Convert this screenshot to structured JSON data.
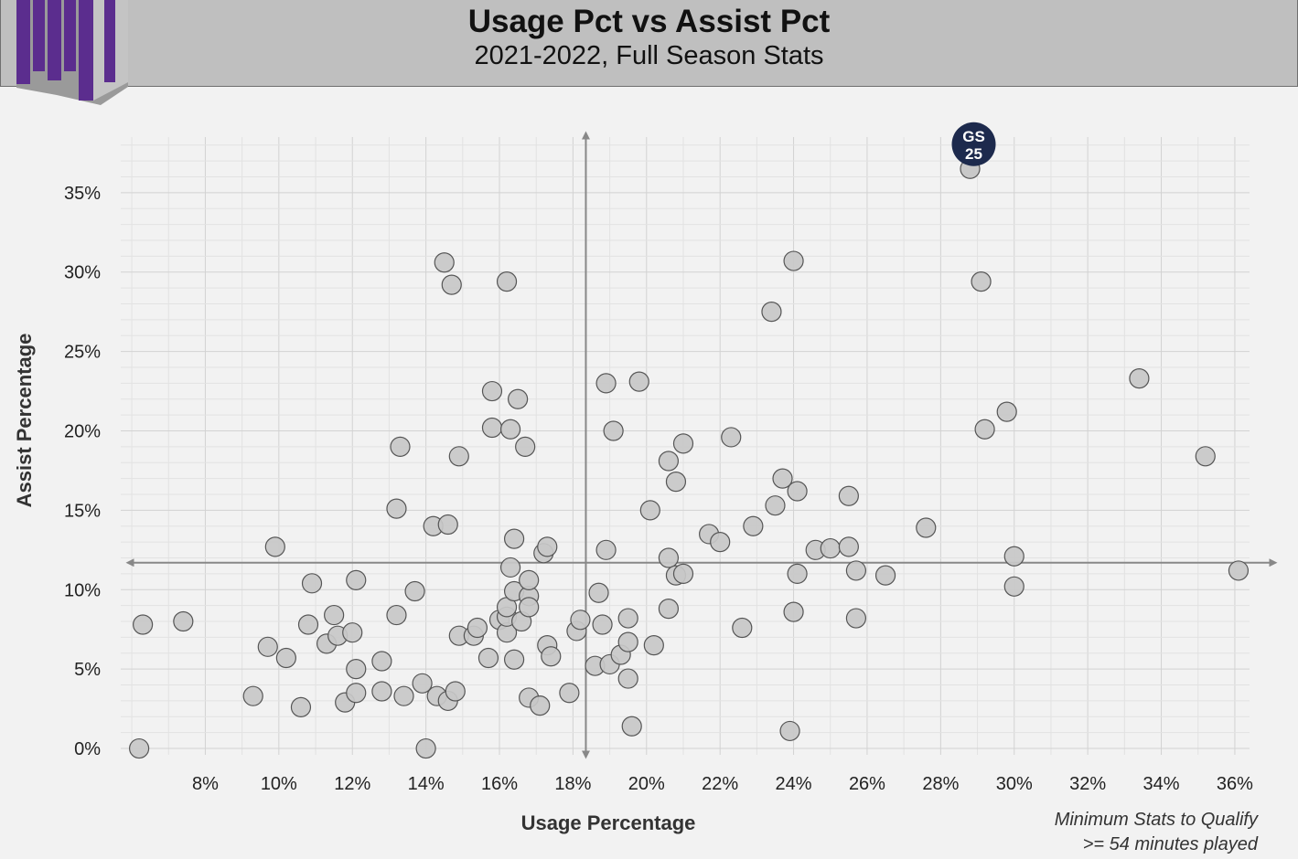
{
  "header": {
    "title": "Usage Pct vs Assist Pct",
    "subtitle": "2021-2022, Full Season Stats"
  },
  "footnote": {
    "line1": "Minimum Stats to Qualify",
    "line2": ">= 54 minutes played"
  },
  "colors": {
    "point_fill": "#c8c8c8",
    "point_stroke": "#555555",
    "highlight_fill": "#1d2a4d",
    "header_bg": "#bfbfbf",
    "plot_bg": "#f2f2f2",
    "logo_purple": "#5b2d8e"
  },
  "chart_data": {
    "type": "scatter",
    "xlabel": "Usage Percentage",
    "ylabel": "Assist Percentage",
    "xlim": [
      5.7,
      36.4
    ],
    "ylim": [
      -0.4,
      38.5
    ],
    "x_ticks": [
      8,
      10,
      12,
      14,
      16,
      18,
      20,
      22,
      24,
      26,
      28,
      30,
      32,
      34,
      36
    ],
    "y_ticks": [
      0,
      5,
      10,
      15,
      20,
      25,
      30,
      35
    ],
    "tick_suffix": "%",
    "grid": true,
    "reference_lines": {
      "x": 18.35,
      "y": 11.7
    },
    "highlight": {
      "label_top": "GS",
      "label_bottom": "25",
      "x": 28.8,
      "y": 36.5
    },
    "points": [
      [
        6.2,
        0
      ],
      [
        6.3,
        7.8
      ],
      [
        7.4,
        8
      ],
      [
        9.3,
        3.3
      ],
      [
        9.7,
        6.4
      ],
      [
        9.9,
        12.7
      ],
      [
        10.2,
        5.7
      ],
      [
        10.6,
        2.6
      ],
      [
        10.8,
        7.8
      ],
      [
        10.9,
        10.4
      ],
      [
        11.3,
        6.6
      ],
      [
        11.5,
        8.4
      ],
      [
        11.6,
        7.1
      ],
      [
        11.8,
        2.9
      ],
      [
        12.0,
        7.3
      ],
      [
        12.1,
        3.5
      ],
      [
        12.1,
        5.0
      ],
      [
        12.1,
        10.6
      ],
      [
        12.8,
        3.6
      ],
      [
        12.8,
        5.5
      ],
      [
        13.2,
        8.4
      ],
      [
        13.2,
        15.1
      ],
      [
        13.3,
        19.0
      ],
      [
        13.4,
        3.3
      ],
      [
        13.7,
        9.9
      ],
      [
        13.9,
        4.1
      ],
      [
        14.0,
        0
      ],
      [
        14.2,
        14.0
      ],
      [
        14.3,
        3.3
      ],
      [
        14.5,
        30.6
      ],
      [
        14.6,
        3.0
      ],
      [
        14.6,
        14.1
      ],
      [
        14.7,
        29.2
      ],
      [
        14.8,
        3.6
      ],
      [
        14.9,
        7.1
      ],
      [
        14.9,
        18.4
      ],
      [
        15.3,
        7.1
      ],
      [
        15.4,
        7.6
      ],
      [
        15.7,
        5.7
      ],
      [
        15.8,
        20.2
      ],
      [
        15.8,
        22.5
      ],
      [
        16.0,
        8.1
      ],
      [
        16.2,
        29.4
      ],
      [
        16.2,
        7.3
      ],
      [
        16.2,
        8.3
      ],
      [
        16.2,
        8.9
      ],
      [
        16.3,
        20.1
      ],
      [
        16.3,
        11.4
      ],
      [
        16.4,
        13.2
      ],
      [
        16.4,
        9.9
      ],
      [
        16.4,
        5.6
      ],
      [
        16.5,
        22.0
      ],
      [
        16.6,
        8.0
      ],
      [
        16.7,
        19.0
      ],
      [
        16.8,
        9.6
      ],
      [
        16.8,
        10.6
      ],
      [
        16.8,
        8.9
      ],
      [
        16.8,
        3.2
      ],
      [
        17.1,
        2.7
      ],
      [
        17.2,
        12.3
      ],
      [
        17.3,
        12.7
      ],
      [
        17.3,
        6.5
      ],
      [
        17.4,
        5.8
      ],
      [
        17.9,
        3.5
      ],
      [
        18.1,
        7.4
      ],
      [
        18.2,
        8.1
      ],
      [
        18.6,
        5.2
      ],
      [
        18.7,
        9.8
      ],
      [
        18.8,
        7.8
      ],
      [
        18.9,
        23.0
      ],
      [
        18.9,
        12.5
      ],
      [
        19.0,
        5.3
      ],
      [
        19.1,
        20.0
      ],
      [
        19.3,
        5.9
      ],
      [
        19.5,
        4.4
      ],
      [
        19.5,
        6.7
      ],
      [
        19.5,
        8.2
      ],
      [
        19.6,
        1.4
      ],
      [
        19.8,
        23.1
      ],
      [
        20.1,
        15.0
      ],
      [
        20.2,
        6.5
      ],
      [
        20.6,
        18.1
      ],
      [
        20.6,
        12.0
      ],
      [
        20.6,
        8.8
      ],
      [
        20.8,
        16.8
      ],
      [
        20.8,
        10.9
      ],
      [
        21.0,
        11.0
      ],
      [
        21.0,
        19.2
      ],
      [
        21.7,
        13.5
      ],
      [
        22.0,
        13.0
      ],
      [
        22.3,
        19.6
      ],
      [
        22.6,
        7.6
      ],
      [
        22.9,
        14.0
      ],
      [
        23.4,
        27.5
      ],
      [
        23.5,
        15.3
      ],
      [
        23.7,
        17.0
      ],
      [
        23.9,
        1.1
      ],
      [
        24.0,
        8.6
      ],
      [
        24.0,
        30.7
      ],
      [
        24.1,
        16.2
      ],
      [
        24.1,
        11.0
      ],
      [
        24.6,
        12.5
      ],
      [
        25.0,
        12.6
      ],
      [
        25.5,
        15.9
      ],
      [
        25.5,
        12.7
      ],
      [
        25.7,
        8.2
      ],
      [
        25.7,
        11.2
      ],
      [
        26.5,
        10.9
      ],
      [
        27.6,
        13.9
      ],
      [
        29.1,
        29.4
      ],
      [
        29.2,
        20.1
      ],
      [
        29.8,
        21.2
      ],
      [
        30.0,
        12.1
      ],
      [
        30.0,
        10.2
      ],
      [
        33.4,
        23.3
      ],
      [
        35.2,
        18.4
      ],
      [
        36.1,
        11.2
      ]
    ]
  }
}
